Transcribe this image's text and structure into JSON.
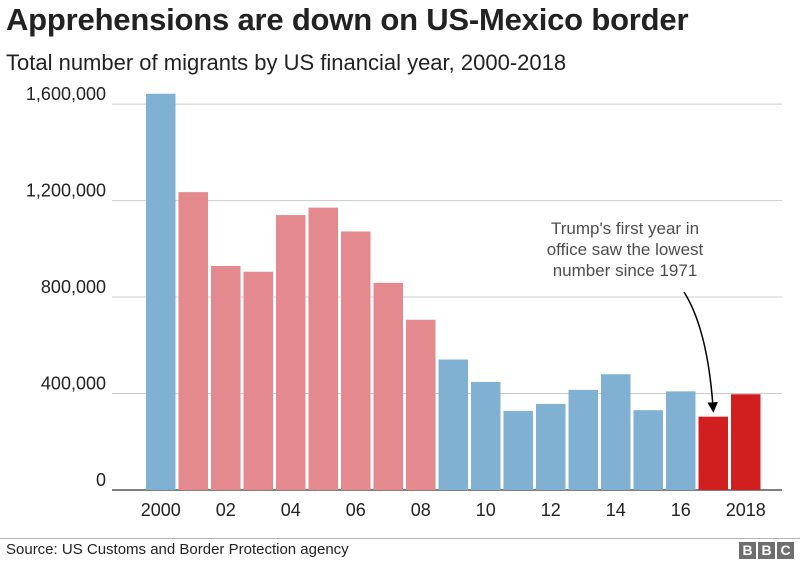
{
  "title": "Apprehensions are down on US-Mexico border",
  "subtitle": "Total number of migrants by US financial year, 2000-2018",
  "source": "Source: US Customs and Border Protection agency",
  "logo": [
    "B",
    "B",
    "C"
  ],
  "colors": {
    "blue": "#80b1d3",
    "pink": "#e48a8e",
    "red": "#d11f20",
    "grid": "#cccccc",
    "text": "#222222",
    "annotation": "#4d4d4d"
  },
  "chart_data": {
    "type": "bar",
    "categories": [
      "2000",
      "2001",
      "2002",
      "2003",
      "2004",
      "2005",
      "2006",
      "2007",
      "2008",
      "2009",
      "2010",
      "2011",
      "2012",
      "2013",
      "2014",
      "2015",
      "2016",
      "2017",
      "2018"
    ],
    "values": [
      1643000,
      1235000,
      929000,
      905000,
      1140000,
      1171000,
      1072000,
      859000,
      706000,
      541000,
      448000,
      328000,
      357000,
      415000,
      480000,
      331000,
      409000,
      304000,
      397000
    ],
    "bar_colors": [
      "blue",
      "pink",
      "pink",
      "pink",
      "pink",
      "pink",
      "pink",
      "pink",
      "pink",
      "blue",
      "blue",
      "blue",
      "blue",
      "blue",
      "blue",
      "blue",
      "blue",
      "red",
      "red"
    ],
    "x_tick_labels": [
      "2000",
      "",
      "02",
      "",
      "04",
      "",
      "06",
      "",
      "08",
      "",
      "10",
      "",
      "12",
      "",
      "14",
      "",
      "16",
      "",
      "2018"
    ],
    "y_ticks": [
      0,
      400000,
      800000,
      1200000,
      1600000
    ],
    "y_tick_labels": [
      "0",
      "400,000",
      "800,000",
      "1,200,000",
      "1,600,000"
    ],
    "ylim": [
      0,
      1700000
    ],
    "grid": true,
    "annotation": {
      "lines": [
        "Trump's first year in",
        "office saw the lowest",
        "number since 1971"
      ],
      "target_category": "2017"
    }
  }
}
